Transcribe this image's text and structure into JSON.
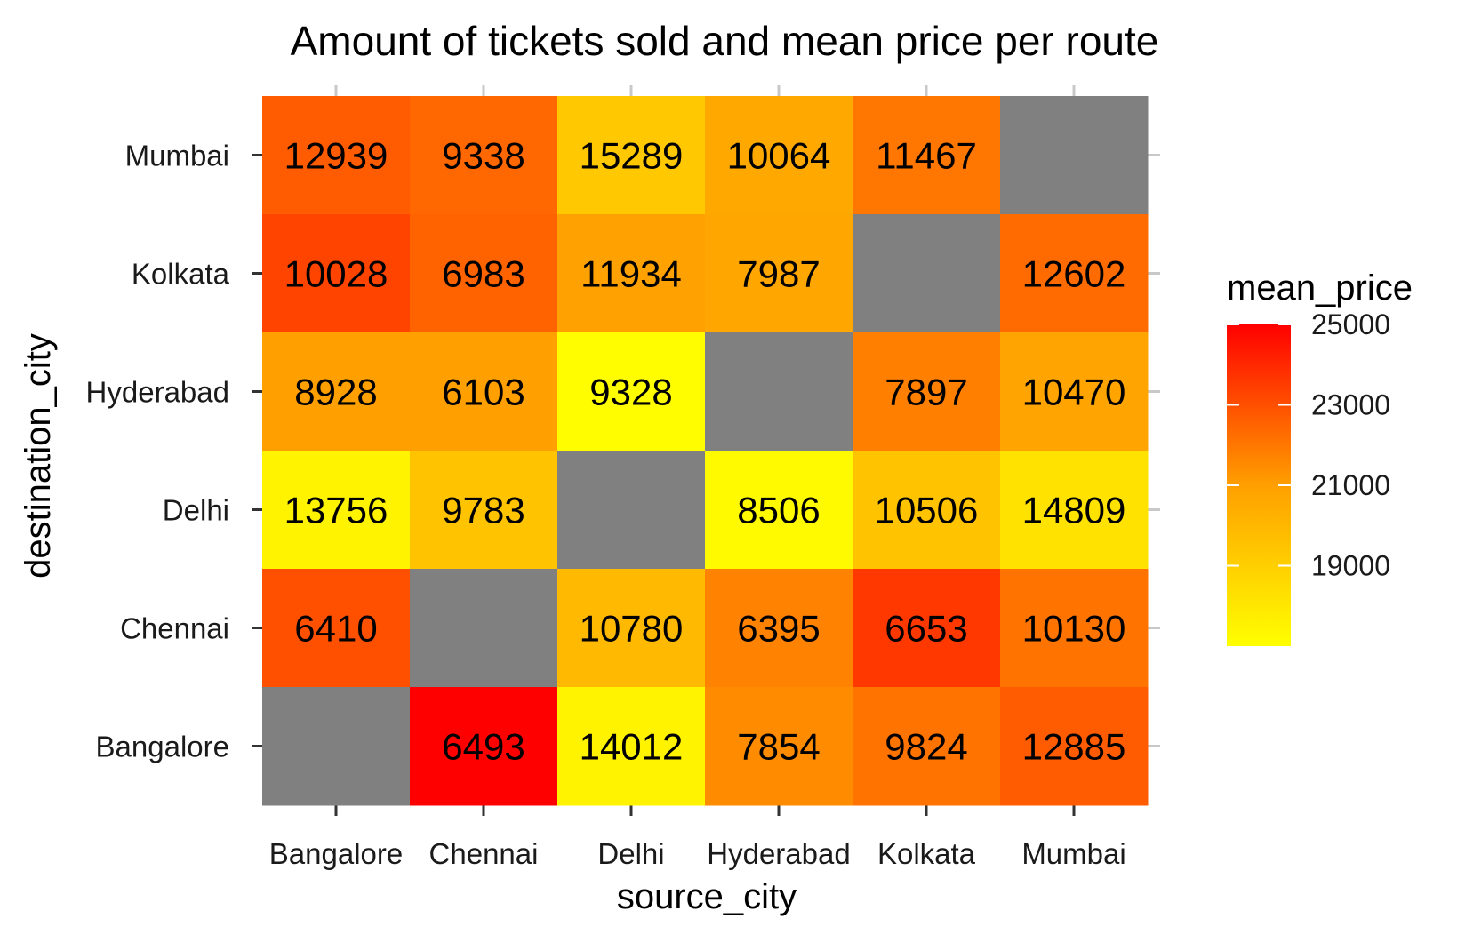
{
  "chart_data": {
    "type": "heatmap",
    "title": "Amount of tickets sold and mean price per route",
    "xlabel": "source_city",
    "ylabel": "destination_city",
    "x_categories": [
      "Bangalore",
      "Chennai",
      "Delhi",
      "Hyderabad",
      "Kolkata",
      "Mumbai"
    ],
    "y_categories": [
      "Bangalore",
      "Chennai",
      "Delhi",
      "Hyderabad",
      "Kolkata",
      "Mumbai"
    ],
    "legend": {
      "title": "mean_price",
      "placement": "right",
      "ticks": [
        19000,
        21000,
        23000,
        25000
      ],
      "range": [
        17000,
        25000
      ],
      "low_color": "#ffff00",
      "high_color": "#ff0000"
    },
    "missing_color": "#808080",
    "cells": [
      {
        "source": "Bangalore",
        "destination": "Mumbai",
        "count": "12939",
        "mean_price": 22700
      },
      {
        "source": "Chennai",
        "destination": "Mumbai",
        "count": "9338",
        "mean_price": 22400
      },
      {
        "source": "Delhi",
        "destination": "Mumbai",
        "count": "15289",
        "mean_price": 19300
      },
      {
        "source": "Hyderabad",
        "destination": "Mumbai",
        "count": "10064",
        "mean_price": 20600
      },
      {
        "source": "Kolkata",
        "destination": "Mumbai",
        "count": "11467",
        "mean_price": 22000
      },
      {
        "source": "Mumbai",
        "destination": "Mumbai",
        "count": "",
        "mean_price": null
      },
      {
        "source": "Bangalore",
        "destination": "Kolkata",
        "count": "10028",
        "mean_price": 23300
      },
      {
        "source": "Chennai",
        "destination": "Kolkata",
        "count": "6983",
        "mean_price": 22500
      },
      {
        "source": "Delhi",
        "destination": "Kolkata",
        "count": "11934",
        "mean_price": 20900
      },
      {
        "source": "Hyderabad",
        "destination": "Kolkata",
        "count": "7987",
        "mean_price": 20700
      },
      {
        "source": "Kolkata",
        "destination": "Kolkata",
        "count": "",
        "mean_price": null
      },
      {
        "source": "Mumbai",
        "destination": "Kolkata",
        "count": "12602",
        "mean_price": 22300
      },
      {
        "source": "Bangalore",
        "destination": "Hyderabad",
        "count": "8928",
        "mean_price": 21000
      },
      {
        "source": "Chennai",
        "destination": "Hyderabad",
        "count": "6103",
        "mean_price": 21000
      },
      {
        "source": "Delhi",
        "destination": "Hyderabad",
        "count": "9328",
        "mean_price": 17100
      },
      {
        "source": "Hyderabad",
        "destination": "Hyderabad",
        "count": "",
        "mean_price": null
      },
      {
        "source": "Kolkata",
        "destination": "Hyderabad",
        "count": "7897",
        "mean_price": 21800
      },
      {
        "source": "Mumbai",
        "destination": "Hyderabad",
        "count": "10470",
        "mean_price": 20800
      },
      {
        "source": "Bangalore",
        "destination": "Delhi",
        "count": "13756",
        "mean_price": 17500
      },
      {
        "source": "Chennai",
        "destination": "Delhi",
        "count": "9783",
        "mean_price": 19500
      },
      {
        "source": "Delhi",
        "destination": "Delhi",
        "count": "",
        "mean_price": null
      },
      {
        "source": "Hyderabad",
        "destination": "Delhi",
        "count": "8506",
        "mean_price": 17200
      },
      {
        "source": "Kolkata",
        "destination": "Delhi",
        "count": "10506",
        "mean_price": 19500
      },
      {
        "source": "Mumbai",
        "destination": "Delhi",
        "count": "14809",
        "mean_price": 18200
      },
      {
        "source": "Bangalore",
        "destination": "Chennai",
        "count": "6410",
        "mean_price": 23000
      },
      {
        "source": "Chennai",
        "destination": "Chennai",
        "count": "",
        "mean_price": null
      },
      {
        "source": "Delhi",
        "destination": "Chennai",
        "count": "10780",
        "mean_price": 19900
      },
      {
        "source": "Hyderabad",
        "destination": "Chennai",
        "count": "6395",
        "mean_price": 21700
      },
      {
        "source": "Kolkata",
        "destination": "Chennai",
        "count": "6653",
        "mean_price": 23600
      },
      {
        "source": "Mumbai",
        "destination": "Chennai",
        "count": "10130",
        "mean_price": 22100
      },
      {
        "source": "Bangalore",
        "destination": "Bangalore",
        "count": "",
        "mean_price": null
      },
      {
        "source": "Chennai",
        "destination": "Bangalore",
        "count": "6493",
        "mean_price": 25000
      },
      {
        "source": "Delhi",
        "destination": "Bangalore",
        "count": "14012",
        "mean_price": 17500
      },
      {
        "source": "Hyderabad",
        "destination": "Bangalore",
        "count": "7854",
        "mean_price": 21500
      },
      {
        "source": "Kolkata",
        "destination": "Bangalore",
        "count": "9824",
        "mean_price": 22100
      },
      {
        "source": "Mumbai",
        "destination": "Bangalore",
        "count": "12885",
        "mean_price": 22700
      }
    ]
  }
}
